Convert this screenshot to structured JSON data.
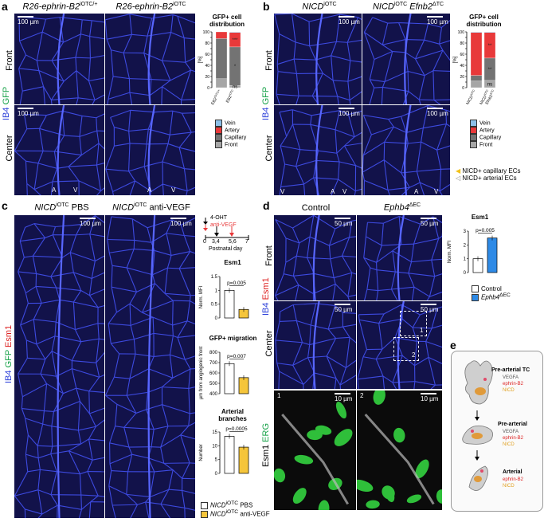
{
  "panel_letters": [
    "a",
    "b",
    "c",
    "d",
    "e"
  ],
  "panel_a": {
    "col1": "R26-ephrin-B2",
    "col1_sup": "iOTC/+",
    "col2": "R26-ephrin-B2",
    "col2_sup": "iOTC",
    "rows": [
      "Front",
      "Center"
    ],
    "side_label_ib4": "IB4",
    "side_label_gfp": "GFP",
    "scalebar": "100 µm",
    "av": [
      "A",
      "V",
      "A",
      "V"
    ]
  },
  "panel_b": {
    "col1": "NICD",
    "col1_sup": "iOTC",
    "col2a": "NICD",
    "col2a_sup": "iOTC",
    "col2b": "Efnb2",
    "col2b_sup": "ΔTC",
    "rows": [
      "Front",
      "Center"
    ],
    "scalebar": "100 µm",
    "av": [
      "V",
      "A",
      "V",
      "A",
      "V"
    ],
    "arrow_legend": [
      "NICD+ capillary ECs",
      "NICD+ arterial ECs"
    ]
  },
  "panel_c": {
    "col1": "NICD",
    "col1_sup": "iOTC",
    "col1_suffix": " PBS",
    "col2": "NICD",
    "col2_sup": "iOTC",
    "col2_suffix": " anti-VEGF",
    "side_label_ib4": "IB4",
    "side_label_gfp": "GFP",
    "side_label_esm1": "Esm1",
    "scalebar": "100 µm",
    "timeline": {
      "line1": "4-OHT",
      "line2": "anti-VEGF",
      "days": [
        "0",
        "3,4",
        "5,6",
        "7"
      ],
      "xlabel": "Postnatal day"
    },
    "legend": [
      "NICD",
      "NICD"
    ],
    "legend_sup": [
      "iOTC",
      "iOTC"
    ],
    "legend_suffix": [
      " PBS",
      " anti-VEGF"
    ]
  },
  "panel_d": {
    "col1": "Control",
    "col2": "Ephb4",
    "col2_sup": "ΔEC",
    "rows": [
      "Front",
      "Center"
    ],
    "side_label_ib4": "IB4",
    "side_label_esm1": "Esm1",
    "zoom_label_esm1": "Esm1",
    "zoom_label_erg": "ERG",
    "scalebar_50": "50 µm",
    "scalebar_10": "10 µm",
    "box_labels": [
      "1",
      "2"
    ],
    "zoom_numbers": [
      "1",
      "2"
    ],
    "legend": [
      "Control",
      "Ephb4"
    ],
    "legend_sup": [
      "",
      "ΔEC"
    ]
  },
  "panel_e": {
    "stages": [
      {
        "title": "Pre-arterial TC",
        "markers": [
          "VEGFA",
          "ephrin-B2",
          "NICD"
        ]
      },
      {
        "title": "Pre-arterial",
        "markers": [
          "VEGFA",
          "ephrin-B2",
          "NICD"
        ]
      },
      {
        "title": "Arterial",
        "markers": [
          "ephrin-B2",
          "NICD"
        ]
      }
    ]
  },
  "chart_data": [
    {
      "type": "bar",
      "id": "a_gfp_distribution",
      "title": "GFP+ cell distribution",
      "ylabel": "[%]",
      "ylim": [
        0,
        100
      ],
      "yticks": [
        0,
        10,
        20,
        30,
        40,
        50,
        60,
        70,
        80,
        90,
        100
      ],
      "categories": [
        "EB2iOTC/+",
        "EB2iOTC"
      ],
      "category_main": [
        "EB2",
        "EB2"
      ],
      "category_sup": [
        "iOTC/+",
        "iOTC"
      ],
      "stacked": true,
      "series": [
        {
          "name": "Front",
          "color": "#a6a6a6",
          "values": [
            16,
            4
          ]
        },
        {
          "name": "Capillary",
          "color": "#737373",
          "values": [
            72,
            69
          ]
        },
        {
          "name": "Artery",
          "color": "#e8393a",
          "values": [
            12,
            26
          ]
        },
        {
          "name": "Vein",
          "color": "#8cc0e8",
          "values": [
            0,
            1
          ]
        }
      ],
      "significance": [
        {
          "label": "ns",
          "series": "Front"
        },
        {
          "label": "*",
          "series": "Capillary"
        },
        {
          "label": "***",
          "series": "Artery"
        }
      ]
    },
    {
      "type": "bar",
      "id": "b_gfp_distribution",
      "title": "GFP+ cell distribution",
      "ylabel": "[%]",
      "ylim": [
        0,
        100
      ],
      "yticks": [
        0,
        10,
        20,
        30,
        40,
        50,
        60,
        70,
        80,
        90,
        100
      ],
      "categories": [
        "NICDiOTC",
        "NICDiOTC Efnb2ΔTC"
      ],
      "category_main": [
        "NICD",
        "NICD"
      ],
      "category_sup": [
        "iOTC",
        "iOTC"
      ],
      "category_second_line": [
        "",
        "Efnb2"
      ],
      "category_second_sup": [
        "",
        "ΔTC"
      ],
      "stacked": true,
      "series": [
        {
          "name": "Front",
          "color": "#a6a6a6",
          "values": [
            12,
            13
          ]
        },
        {
          "name": "Capillary",
          "color": "#737373",
          "values": [
            10,
            40
          ]
        },
        {
          "name": "Artery",
          "color": "#e8393a",
          "values": [
            77,
            46
          ]
        },
        {
          "name": "Vein",
          "color": "#8cc0e8",
          "values": [
            1,
            1
          ]
        }
      ],
      "significance": [
        {
          "label": "ns",
          "series": "Front"
        },
        {
          "label": "**",
          "series": "Capillary"
        },
        {
          "label": "**",
          "series": "Artery"
        }
      ]
    },
    {
      "type": "bar",
      "id": "c_esm1",
      "title": "Esm1",
      "ylabel": "Norm. MFI",
      "ylim": [
        0,
        1.5
      ],
      "yticks": [
        0,
        0.5,
        1.0,
        1.5
      ],
      "ytick_labels": [
        "0",
        "0.5",
        "1",
        "1.5"
      ],
      "categories": [
        "NICDiOTC PBS",
        "NICDiOTC anti-VEGF"
      ],
      "values": [
        1.0,
        0.31
      ],
      "colors": [
        "#ffffff",
        "#f5c53b"
      ],
      "pvalue": "p=0.005"
    },
    {
      "type": "bar",
      "id": "c_gfp_migration",
      "title": "GFP+ migration",
      "ylabel": "µm from angiogenic front",
      "ylim": [
        400,
        800
      ],
      "yticks": [
        400,
        500,
        600,
        700,
        800
      ],
      "categories": [
        "NICDiOTC PBS",
        "NICDiOTC anti-VEGF"
      ],
      "values": [
        690,
        555
      ],
      "colors": [
        "#ffffff",
        "#f5c53b"
      ],
      "pvalue": "p=0.007"
    },
    {
      "type": "bar",
      "id": "c_arterial_branches",
      "title": "Arterial branches",
      "ylabel": "Number",
      "ylim": [
        0,
        15
      ],
      "yticks": [
        0,
        5,
        10,
        15
      ],
      "categories": [
        "NICDiOTC PBS",
        "NICDiOTC anti-VEGF"
      ],
      "values": [
        13.4,
        9.5
      ],
      "colors": [
        "#ffffff",
        "#f5c53b"
      ],
      "pvalue": "p=0.0005"
    },
    {
      "type": "bar",
      "id": "d_esm1",
      "title": "Esm1",
      "ylabel": "Norm. MFI",
      "ylim": [
        0,
        3
      ],
      "yticks": [
        0,
        1,
        2,
        3
      ],
      "categories": [
        "Control",
        "Ephb4ΔEC"
      ],
      "values": [
        1.0,
        2.5
      ],
      "colors": [
        "#ffffff",
        "#2e8ae6"
      ],
      "pvalue": "p=0.005"
    }
  ]
}
